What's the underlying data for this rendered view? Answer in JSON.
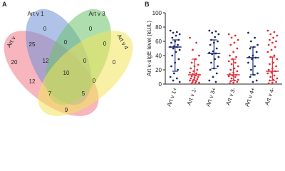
{
  "chart_data": [
    {
      "type": "venn",
      "panel_label": "A",
      "sets": [
        "Art v",
        "Art v 1",
        "Art v 3",
        "Art v 4"
      ],
      "colors": [
        "#f07a86",
        "#6f8fd6",
        "#6cc26c",
        "#f2e35a"
      ],
      "values": [
        0,
        0,
        25,
        0,
        0,
        20,
        12,
        0,
        0,
        12,
        10,
        0,
        7,
        5,
        9
      ]
    },
    {
      "type": "dot",
      "panel_label": "B",
      "ylabel": "Art v-sIgE level (kU/L)",
      "categories": [
        "Art v 1+",
        "Art v 1-",
        "Art v 3+",
        "Art v 3-",
        "Art v 4+",
        "Art v 4-"
      ],
      "colors": [
        "#1f2a6b",
        "#e0313a",
        "#1f2a6b",
        "#e0313a",
        "#1f2a6b",
        "#e0313a"
      ],
      "values": [
        [
          75,
          73,
          72,
          70,
          68,
          65,
          62,
          60,
          58,
          55,
          53,
          52,
          52,
          50,
          48,
          45,
          40,
          35,
          30,
          25,
          20,
          15,
          10,
          8,
          5,
          3
        ],
        [
          65,
          58,
          48,
          40,
          35,
          30,
          27,
          25,
          22,
          20,
          18,
          16,
          15,
          14,
          13,
          12,
          11,
          10,
          9,
          8,
          7,
          6,
          5,
          4,
          3,
          2,
          2,
          1
        ],
        [
          75,
          74,
          72,
          70,
          66,
          62,
          60,
          58,
          55,
          50,
          46,
          44,
          43,
          42,
          38,
          35,
          30,
          25,
          22,
          20,
          15,
          10,
          5,
          3
        ],
        [
          70,
          68,
          65,
          62,
          58,
          55,
          50,
          45,
          40,
          38,
          35,
          32,
          30,
          28,
          25,
          22,
          20,
          18,
          16,
          14,
          13,
          12,
          11,
          10,
          8,
          6,
          5,
          4,
          3,
          2,
          1
        ],
        [
          72,
          65,
          60,
          55,
          52,
          50,
          45,
          40,
          38,
          37,
          35,
          30,
          25,
          20,
          15,
          13,
          10,
          5,
          3
        ],
        [
          75,
          73,
          70,
          68,
          65,
          62,
          60,
          58,
          55,
          52,
          48,
          45,
          40,
          38,
          35,
          30,
          28,
          25,
          22,
          20,
          18,
          16,
          15,
          12,
          10,
          8,
          6,
          5,
          3,
          2,
          1
        ]
      ],
      "medians": [
        52,
        13,
        43,
        13,
        37,
        18
      ],
      "q1": [
        18,
        5,
        22,
        5,
        13,
        5
      ],
      "q3": [
        62,
        35,
        62,
        35,
        52,
        38
      ],
      "ylim": [
        0,
        100
      ],
      "yticks": [
        0,
        20,
        40,
        60,
        80,
        100
      ]
    }
  ]
}
